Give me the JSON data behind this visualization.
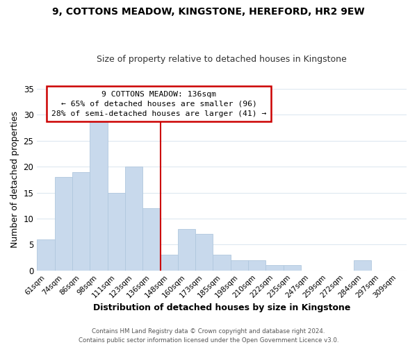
{
  "title": "9, COTTONS MEADOW, KINGSTONE, HEREFORD, HR2 9EW",
  "subtitle": "Size of property relative to detached houses in Kingstone",
  "xlabel": "Distribution of detached houses by size in Kingstone",
  "ylabel": "Number of detached properties",
  "bar_color": "#c8d9ec",
  "bar_edge_color": "#b0c8de",
  "categories": [
    "61sqm",
    "74sqm",
    "86sqm",
    "98sqm",
    "111sqm",
    "123sqm",
    "136sqm",
    "148sqm",
    "160sqm",
    "173sqm",
    "185sqm",
    "198sqm",
    "210sqm",
    "222sqm",
    "235sqm",
    "247sqm",
    "259sqm",
    "272sqm",
    "284sqm",
    "297sqm",
    "309sqm"
  ],
  "values": [
    6,
    18,
    19,
    29,
    15,
    20,
    12,
    3,
    8,
    7,
    3,
    2,
    2,
    1,
    1,
    0,
    0,
    0,
    2,
    0,
    0
  ],
  "highlight_index": 6,
  "highlight_color": "#cc0000",
  "ylim": [
    0,
    35
  ],
  "yticks": [
    0,
    5,
    10,
    15,
    20,
    25,
    30,
    35
  ],
  "annotation_title": "9 COTTONS MEADOW: 136sqm",
  "annotation_line1": "← 65% of detached houses are smaller (96)",
  "annotation_line2": "28% of semi-detached houses are larger (41) →",
  "footer_line1": "Contains HM Land Registry data © Crown copyright and database right 2024.",
  "footer_line2": "Contains public sector information licensed under the Open Government Licence v3.0.",
  "background_color": "#ffffff",
  "grid_color": "#dde8f0"
}
